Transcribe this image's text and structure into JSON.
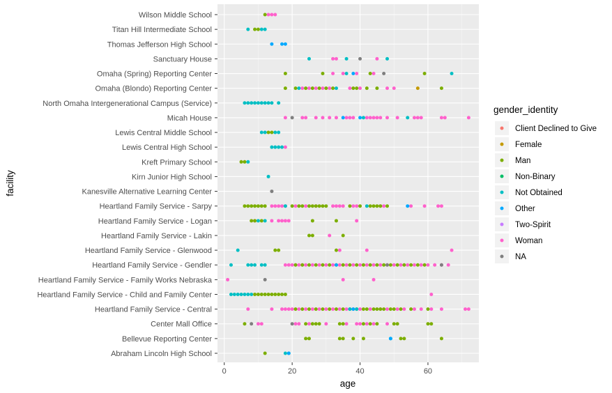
{
  "chart_data": {
    "type": "scatter",
    "xlabel": "age",
    "ylabel": "facility",
    "xlim": [
      -2,
      75
    ],
    "x_ticks": [
      0,
      20,
      40,
      60
    ],
    "grid": true,
    "legend_placement": "right",
    "legend_title": "gender_identity",
    "legend": [
      {
        "name": "Client Declined to Give",
        "color": "#F8766D"
      },
      {
        "name": "Female",
        "color": "#C49A00"
      },
      {
        "name": "Man",
        "color": "#7CAE00"
      },
      {
        "name": "Non-Binary",
        "color": "#00BE67"
      },
      {
        "name": "Not Obtained",
        "color": "#00BFC4"
      },
      {
        "name": "Other",
        "color": "#00A9FF"
      },
      {
        "name": "Two-Spirit",
        "color": "#C77CFF"
      },
      {
        "name": "Woman",
        "color": "#FF61CC"
      },
      {
        "name": "NA",
        "color": "#7F7F7F"
      }
    ],
    "categories": [
      "Wilson Middle School",
      "Titan Hill Intermediate School",
      "Thomas Jefferson High School",
      "Sanctuary House",
      "Omaha (Spring) Reporting Center",
      "Omaha (Blondo) Reporting Center",
      "North Omaha Intergenerational Campus (Service)",
      "Micah House",
      "Lewis Central Middle School",
      "Lewis Central High School",
      "Kreft Primary School",
      "Kirn Junior High  School",
      "Kanesville Alternative Learning Center",
      "Heartland Family Service - Sarpy",
      "Heartland Family Service - Logan",
      "Heartland Family Service - Lakin",
      "Heartland Family Service - Glenwood",
      "Heartland Family Service - Gendler",
      "Heartland Family Service - Family Works Nebraska",
      "Heartland Family Service - Child and Family Center",
      "Heartland Family Service - Central",
      "Center Mall Office",
      "Bellevue Reporting Center",
      "Abraham Lincoln High School"
    ],
    "series": [
      {
        "name": "Woman",
        "color": "#FF61CC",
        "points": [
          [
            "Wilson Middle School",
            [
              13,
              14,
              15
            ]
          ],
          [
            "Sanctuary House",
            [
              32,
              33,
              45
            ]
          ],
          [
            "Omaha (Spring) Reporting Center",
            [
              32,
              35,
              39,
              44
            ]
          ],
          [
            "Omaha (Blondo) Reporting Center",
            [
              23,
              25,
              27,
              29,
              31,
              37,
              40,
              48,
              50
            ]
          ],
          [
            "Micah House",
            [
              18,
              23,
              24,
              27,
              29,
              31,
              33,
              36,
              37,
              38,
              42,
              43,
              44,
              45,
              46,
              48,
              51,
              56,
              57,
              58,
              64,
              65,
              72
            ]
          ],
          [
            "Lewis Central High School",
            [
              18
            ]
          ],
          [
            "Heartland Family Service - Sarpy",
            [
              14,
              15,
              16,
              17,
              18,
              21,
              24,
              27,
              32,
              33,
              34,
              35,
              38,
              39,
              46,
              47,
              55,
              59,
              63,
              64
            ]
          ],
          [
            "Heartland Family Service - Logan",
            [
              9,
              14,
              16,
              17,
              18,
              19,
              39
            ]
          ],
          [
            "Heartland Family Service - Lakin",
            [
              31
            ]
          ],
          [
            "Heartland Family Service - Glenwood",
            [
              34,
              42,
              67
            ]
          ],
          [
            "Heartland Family Service - Gendler",
            [
              18,
              19,
              20,
              21,
              22,
              23,
              24,
              26,
              28,
              30,
              32,
              34,
              36,
              38,
              40,
              42,
              44,
              46,
              48,
              50,
              52,
              54,
              56,
              58,
              60,
              62,
              64,
              66
            ]
          ],
          [
            "Heartland Family Service - Family Works Nebraska",
            [
              1,
              35,
              44
            ]
          ],
          [
            "Heartland Family Service - Child and Family Center",
            [
              61
            ]
          ],
          [
            "Heartland Family Service - Central",
            [
              7,
              14,
              17,
              18,
              19,
              20,
              22,
              24,
              26,
              28,
              30,
              32,
              34,
              36,
              38,
              40,
              43,
              46,
              48,
              51,
              53,
              56,
              58,
              61,
              64,
              71,
              72
            ]
          ],
          [
            "Center Mall Office",
            [
              10,
              11,
              21,
              22,
              25,
              30,
              36,
              39,
              40,
              42,
              44,
              48
            ]
          ]
        ]
      },
      {
        "name": "Man",
        "color": "#7CAE00",
        "points": [
          [
            "Wilson Middle School",
            [
              12
            ]
          ],
          [
            "Titan Hill Intermediate School",
            [
              9,
              10
            ]
          ],
          [
            "Omaha (Spring) Reporting Center",
            [
              18,
              29,
              43,
              59
            ]
          ],
          [
            "Omaha (Blondo) Reporting Center",
            [
              18,
              21,
              24,
              26,
              28,
              30,
              32,
              38,
              39,
              42,
              45,
              64
            ]
          ],
          [
            "Lewis Central Middle School",
            [
              13,
              14
            ]
          ],
          [
            "Kreft Primary School",
            [
              5,
              6
            ]
          ],
          [
            "Heartland Family Service - Sarpy",
            [
              6,
              7,
              8,
              9,
              10,
              11,
              12,
              20,
              22,
              23,
              25,
              26,
              27,
              28,
              29,
              30,
              37,
              40,
              43,
              44,
              45,
              46,
              48
            ]
          ],
          [
            "Heartland Family Service - Logan",
            [
              8,
              9,
              11,
              26,
              33
            ]
          ],
          [
            "Heartland Family Service - Lakin",
            [
              25,
              26,
              35
            ]
          ],
          [
            "Heartland Family Service - Glenwood",
            [
              15,
              16,
              33
            ]
          ],
          [
            "Heartland Family Service - Gendler",
            [
              21,
              23,
              25,
              27,
              29,
              31,
              33,
              35,
              37,
              39,
              41,
              43,
              45,
              47,
              49,
              51,
              53,
              55,
              57,
              59
            ]
          ],
          [
            "Heartland Family Service - Child and Family Center",
            [
              9,
              10,
              11,
              12,
              13,
              14,
              15,
              16,
              17,
              18
            ]
          ],
          [
            "Heartland Family Service - Central",
            [
              21,
              23,
              25,
              27,
              29,
              31,
              33,
              35,
              37,
              39,
              41,
              42,
              44,
              45,
              46,
              47,
              49,
              50,
              52,
              55,
              60
            ]
          ],
          [
            "Center Mall Office",
            [
              6,
              24,
              26,
              27,
              28,
              34,
              35,
              41,
              43,
              45,
              50,
              51,
              60,
              61
            ]
          ],
          [
            "Bellevue Reporting Center",
            [
              24,
              25,
              34,
              35,
              38,
              41,
              52,
              53,
              64
            ]
          ],
          [
            "Abraham Lincoln High School",
            [
              12
            ]
          ]
        ]
      },
      {
        "name": "Not Obtained",
        "color": "#00BFC4",
        "points": [
          [
            "Titan Hill Intermediate School",
            [
              7,
              11,
              12
            ]
          ],
          [
            "Sanctuary House",
            [
              25,
              36,
              48
            ]
          ],
          [
            "Omaha (Spring) Reporting Center",
            [
              67,
              36
            ]
          ],
          [
            "Omaha (Blondo) Reporting Center",
            [
              22,
              33
            ]
          ],
          [
            "North Omaha Intergenerational Campus (Service)",
            [
              6,
              7,
              8,
              9,
              10,
              11,
              12,
              13,
              14,
              16
            ]
          ],
          [
            "Micah House",
            [
              41,
              54
            ]
          ],
          [
            "Lewis Central Middle School",
            [
              11,
              12,
              15,
              16
            ]
          ],
          [
            "Lewis Central High School",
            [
              14,
              15,
              16,
              17
            ]
          ],
          [
            "Kreft Primary School",
            [
              7
            ]
          ],
          [
            "Kirn Junior High  School",
            [
              13
            ]
          ],
          [
            "Heartland Family Service - Sarpy",
            [
              18,
              42
            ]
          ],
          [
            "Heartland Family Service - Logan",
            [
              10,
              12
            ]
          ],
          [
            "Heartland Family Service - Glenwood",
            [
              4
            ]
          ],
          [
            "Heartland Family Service - Gendler",
            [
              2,
              7,
              8,
              9,
              11,
              12
            ]
          ],
          [
            "Heartland Family Service - Child and Family Center",
            [
              2,
              3,
              4,
              5,
              6,
              7,
              8
            ]
          ],
          [
            "Heartland Family Service - Central",
            [
              37,
              39
            ]
          ],
          [
            "Bellevue Reporting Center",
            [
              49
            ]
          ],
          [
            "Abraham Lincoln High School",
            [
              18,
              19
            ]
          ]
        ]
      },
      {
        "name": "Other",
        "color": "#00A9FF",
        "points": [
          [
            "Thomas Jefferson High School",
            [
              14,
              17,
              18
            ]
          ],
          [
            "Omaha (Spring) Reporting Center",
            [
              38
            ]
          ],
          [
            "Micah House",
            [
              35,
              40
            ]
          ],
          [
            "Heartland Family Service - Sarpy",
            [
              54
            ]
          ],
          [
            "Heartland Family Service - Gendler",
            [
              33
            ]
          ],
          [
            "Heartland Family Service - Central",
            [
              38
            ]
          ],
          [
            "Bellevue Reporting Center",
            [
              49
            ]
          ],
          [
            "Abraham Lincoln High School",
            [
              19
            ]
          ]
        ]
      },
      {
        "name": "Female",
        "color": "#C49A00",
        "points": [
          [
            "Omaha (Blondo) Reporting Center",
            [
              57
            ]
          ]
        ]
      },
      {
        "name": "NA",
        "color": "#7F7F7F",
        "points": [
          [
            "Sanctuary House",
            [
              40
            ]
          ],
          [
            "Omaha (Spring) Reporting Center",
            [
              47
            ]
          ],
          [
            "Micah House",
            [
              20
            ]
          ],
          [
            "Kanesville Alternative Learning Center",
            [
              14
            ]
          ],
          [
            "Heartland Family Service - Gendler",
            [
              48,
              64
            ]
          ],
          [
            "Heartland Family Service - Family Works Nebraska",
            [
              12
            ]
          ],
          [
            "Center Mall Office",
            [
              8,
              20
            ]
          ]
        ]
      }
    ]
  }
}
